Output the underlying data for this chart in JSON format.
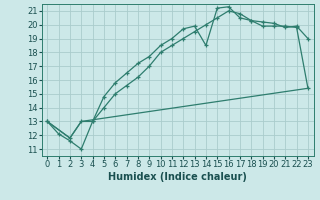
{
  "xlabel": "Humidex (Indice chaleur)",
  "bg_color": "#cce8e8",
  "grid_color": "#aacccc",
  "line_color": "#2e7d6e",
  "xlim": [
    -0.5,
    23.5
  ],
  "ylim": [
    10.5,
    21.5
  ],
  "xticks": [
    0,
    1,
    2,
    3,
    4,
    5,
    6,
    7,
    8,
    9,
    10,
    11,
    12,
    13,
    14,
    15,
    16,
    17,
    18,
    19,
    20,
    21,
    22,
    23
  ],
  "yticks": [
    11,
    12,
    13,
    14,
    15,
    16,
    17,
    18,
    19,
    20,
    21
  ],
  "curve1_x": [
    0,
    1,
    2,
    3,
    4,
    5,
    6,
    7,
    8,
    9,
    10,
    11,
    12,
    13,
    14,
    15,
    16,
    17,
    18,
    19,
    20,
    21,
    22,
    23
  ],
  "curve1_y": [
    13.0,
    12.1,
    11.6,
    11.0,
    13.0,
    14.8,
    15.8,
    16.5,
    17.2,
    17.7,
    18.5,
    19.0,
    19.7,
    19.9,
    18.5,
    21.2,
    21.3,
    20.5,
    20.3,
    20.2,
    20.1,
    19.8,
    19.9,
    19.0
  ],
  "curve2_x": [
    0,
    2,
    3,
    4,
    5,
    6,
    7,
    8,
    9,
    10,
    11,
    12,
    13,
    14,
    15,
    16,
    17,
    18,
    19,
    20,
    21,
    22,
    23
  ],
  "curve2_y": [
    13.0,
    11.8,
    13.0,
    13.0,
    14.0,
    15.0,
    15.6,
    16.2,
    17.0,
    18.0,
    18.5,
    19.0,
    19.5,
    20.0,
    20.5,
    21.0,
    20.8,
    20.3,
    19.9,
    19.9,
    19.9,
    19.8,
    15.4
  ],
  "curve3_x": [
    0,
    2,
    3,
    23
  ],
  "curve3_y": [
    13.0,
    11.8,
    13.0,
    15.4
  ],
  "font_size_label": 7,
  "font_size_tick": 6
}
